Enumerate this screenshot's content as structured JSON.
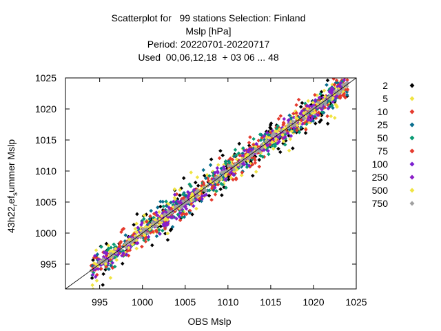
{
  "title_lines": [
    "Scatterplot for   99 stations Selection: Finland",
    "Mslp [hPa]",
    "Period: 20220701-20220717",
    "Used  00,06,12,18  + 03 06 ... 48"
  ],
  "chart_data": {
    "type": "scatter",
    "xlabel": "OBS Mslp",
    "ylabel": "43h22_ref_summer Mslp",
    "ylabel_parts": {
      "a": "43h22",
      "sub1": "r",
      "b": "ef",
      "sub2": "s",
      "c": "ummer Mslp"
    },
    "xlim": [
      991,
      1025
    ],
    "ylim": [
      991,
      1025
    ],
    "xticks": [
      995,
      1000,
      1005,
      1010,
      1015,
      1020,
      1025
    ],
    "yticks": [
      995,
      1000,
      1005,
      1010,
      1015,
      1020,
      1025
    ],
    "diagonal": true,
    "legend_position": "right",
    "legend_title": "",
    "series": [
      {
        "name": "2",
        "color": "#000000",
        "spread": 3.2
      },
      {
        "name": "5",
        "color": "#f0e442",
        "spread": 2.8
      },
      {
        "name": "10",
        "color": "#e53a2d",
        "spread": 2.5
      },
      {
        "name": "25",
        "color": "#0a6f8f",
        "spread": 2.2
      },
      {
        "name": "50",
        "color": "#0a9a73",
        "spread": 1.9
      },
      {
        "name": "75",
        "color": "#e53a2d",
        "spread": 1.7
      },
      {
        "name": "100",
        "color": "#7b1fd0",
        "spread": 1.5
      },
      {
        "name": "250",
        "color": "#8b1fc8",
        "spread": 1.2
      },
      {
        "name": "500",
        "color": "#f0e442",
        "spread": 0.8
      },
      {
        "name": "750",
        "color": "#a0a0a0",
        "spread": 0.5
      }
    ]
  }
}
